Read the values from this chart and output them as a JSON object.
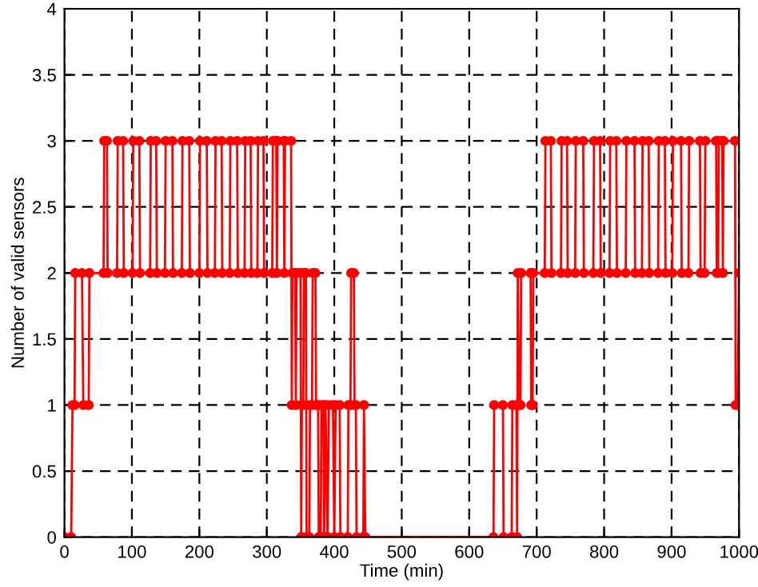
{
  "chart_data": {
    "type": "line",
    "xlabel": "Time (min)",
    "ylabel": "Number of valid sensors",
    "xlim": [
      0,
      1000
    ],
    "xticks": [
      0,
      100,
      200,
      300,
      400,
      500,
      600,
      700,
      800,
      900,
      1000
    ],
    "ylim": [
      0,
      4
    ],
    "yticks": [
      0,
      0.5,
      1,
      1.5,
      2,
      2.5,
      3,
      3.5,
      4
    ],
    "grid": true,
    "marker": "circle",
    "line_style": "solid",
    "series": [
      {
        "color": "#ff0000",
        "x": [
          0,
          10,
          12,
          15,
          16,
          26,
          28,
          36,
          37,
          58,
          59,
          63,
          64,
          78,
          79,
          87,
          88,
          101,
          102,
          111,
          112,
          127,
          128,
          136,
          137,
          149,
          150,
          160,
          161,
          174,
          175,
          185,
          186,
          200,
          201,
          211,
          212,
          223,
          224,
          233,
          234,
          245,
          246,
          256,
          257,
          267,
          268,
          276,
          277,
          286,
          287,
          295,
          296,
          308,
          309,
          314,
          315,
          316,
          325,
          326,
          327,
          336,
          337,
          338,
          342,
          343,
          344,
          350,
          351,
          352,
          354,
          355,
          358,
          359,
          363,
          364,
          367,
          368,
          372,
          373,
          376,
          377,
          380,
          381,
          384,
          385,
          387,
          390,
          392,
          398,
          400,
          402,
          408,
          409,
          420,
          421,
          424,
          425,
          429,
          430,
          432,
          433,
          443,
          444,
          446,
          636,
          637,
          650,
          651,
          663,
          664,
          670,
          671,
          672,
          674,
          676,
          677,
          691,
          692,
          694,
          695,
          712,
          713,
          721,
          722,
          736,
          737,
          745,
          746,
          757,
          758,
          769,
          770,
          784,
          785,
          794,
          795,
          808,
          809,
          818,
          819,
          832,
          833,
          845,
          846,
          856,
          857,
          866,
          867,
          880,
          881,
          890,
          891,
          901,
          902,
          914,
          915,
          925,
          926,
          942,
          943,
          949,
          950,
          966,
          967,
          969,
          970,
          975,
          976,
          977,
          994,
          995,
          998,
          1000
        ],
        "values": [
          0,
          0,
          1,
          1,
          2,
          2,
          1,
          1,
          2,
          2,
          3,
          3,
          2,
          2,
          3,
          3,
          2,
          2,
          3,
          3,
          2,
          2,
          3,
          3,
          2,
          2,
          3,
          3,
          2,
          2,
          3,
          3,
          2,
          2,
          3,
          3,
          2,
          2,
          3,
          3,
          2,
          2,
          3,
          3,
          2,
          2,
          3,
          3,
          2,
          2,
          3,
          3,
          2,
          2,
          3,
          3,
          2,
          3,
          3,
          2,
          3,
          3,
          1,
          2,
          2,
          1,
          2,
          2,
          0,
          1,
          1,
          2,
          2,
          0,
          0,
          1,
          1,
          2,
          2,
          1,
          1,
          0,
          0,
          1,
          1,
          0,
          1,
          0,
          1,
          1,
          0,
          1,
          1,
          0,
          0,
          1,
          1,
          2,
          2,
          1,
          1,
          0,
          0,
          1,
          0,
          0,
          1,
          1,
          0,
          0,
          1,
          1,
          0,
          2,
          1,
          1,
          2,
          2,
          1,
          1,
          2,
          2,
          3,
          3,
          2,
          2,
          3,
          3,
          2,
          2,
          3,
          3,
          2,
          2,
          3,
          3,
          2,
          2,
          3,
          3,
          2,
          2,
          3,
          3,
          2,
          2,
          3,
          3,
          2,
          2,
          3,
          3,
          2,
          2,
          3,
          3,
          2,
          2,
          3,
          3,
          2,
          2,
          3,
          3,
          2,
          2,
          3,
          3,
          2,
          3,
          3,
          1,
          1,
          2
        ]
      }
    ]
  }
}
